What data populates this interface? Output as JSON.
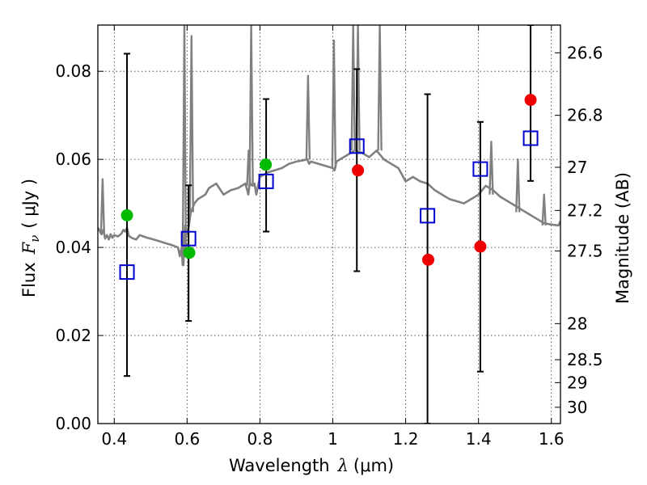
{
  "chart_data": {
    "type": "scatter",
    "xlabel": "Wavelength",
    "xlabel_symbol": "λ",
    "xlabel_unit": "(μm)",
    "ylabel": "Flux",
    "ylabel_symbol": "F",
    "ylabel_subscript": "ν",
    "ylabel_unit": "( μJy )",
    "y2label": "Magnitude (AB)",
    "xlim": [
      0.355,
      1.625
    ],
    "ylim": [
      0.0,
      0.0905
    ],
    "grid": true,
    "x_ticks": [
      {
        "value": 0.4,
        "label": "0.4"
      },
      {
        "value": 0.6,
        "label": "0.6"
      },
      {
        "value": 0.8,
        "label": "0.8"
      },
      {
        "value": 1.0,
        "label": "1"
      },
      {
        "value": 1.2,
        "label": "1.2"
      },
      {
        "value": 1.4,
        "label": "1.4"
      },
      {
        "value": 1.6,
        "label": "1.6"
      }
    ],
    "y_ticks": [
      {
        "value": 0.0,
        "label": "0.00"
      },
      {
        "value": 0.02,
        "label": "0.02"
      },
      {
        "value": 0.04,
        "label": "0.04"
      },
      {
        "value": 0.06,
        "label": "0.06"
      },
      {
        "value": 0.08,
        "label": "0.08"
      }
    ],
    "y2_ticks": [
      {
        "flux": 0.0842,
        "label": "26.6"
      },
      {
        "flux": 0.07,
        "label": "26.8"
      },
      {
        "flux": 0.0582,
        "label": "27"
      },
      {
        "flux": 0.0484,
        "label": "27.2"
      },
      {
        "flux": 0.0392,
        "label": "27.5"
      },
      {
        "flux": 0.0227,
        "label": "28"
      },
      {
        "flux": 0.0145,
        "label": "28.5"
      },
      {
        "flux": 0.0093,
        "label": "29"
      },
      {
        "flux": 0.0037,
        "label": "30"
      }
    ],
    "series": [
      {
        "name": "model spectrum",
        "kind": "line",
        "color": "#808080",
        "x": [
          0.355,
          0.365,
          0.37,
          0.375,
          0.38,
          0.385,
          0.39,
          0.395,
          0.4,
          0.41,
          0.42,
          0.425,
          0.43,
          0.435,
          0.44,
          0.45,
          0.46,
          0.47,
          0.48,
          0.49,
          0.5,
          0.52,
          0.54,
          0.56,
          0.575,
          0.58,
          0.585,
          0.588,
          0.59,
          0.595,
          0.6,
          0.605,
          0.61,
          0.62,
          0.63,
          0.64,
          0.65,
          0.66,
          0.67,
          0.68,
          0.7,
          0.72,
          0.74,
          0.76,
          0.765,
          0.768,
          0.772,
          0.78,
          0.785,
          0.79,
          0.8,
          0.82,
          0.84,
          0.86,
          0.88,
          0.9,
          0.92,
          0.93,
          0.935,
          0.94,
          0.96,
          0.98,
          1.0,
          1.005,
          1.01,
          1.02,
          1.04,
          1.06,
          1.08,
          1.1,
          1.12,
          1.14,
          1.16,
          1.18,
          1.2,
          1.22,
          1.24,
          1.26,
          1.28,
          1.3,
          1.32,
          1.34,
          1.36,
          1.38,
          1.4,
          1.42,
          1.44,
          1.46,
          1.48,
          1.5,
          1.52,
          1.54,
          1.56,
          1.58,
          1.6,
          1.62,
          1.625
        ],
        "y": [
          0.0445,
          0.043,
          0.044,
          0.042,
          0.0428,
          0.0418,
          0.043,
          0.0422,
          0.0428,
          0.0425,
          0.0432,
          0.044,
          0.0436,
          0.0445,
          0.0426,
          0.0421,
          0.0418,
          0.0428,
          0.0425,
          0.0422,
          0.042,
          0.0415,
          0.041,
          0.0405,
          0.04,
          0.038,
          0.04,
          0.036,
          0.036,
          0.045,
          0.043,
          0.045,
          0.048,
          0.05,
          0.051,
          0.0515,
          0.052,
          0.0535,
          0.054,
          0.0545,
          0.052,
          0.053,
          0.0535,
          0.0545,
          0.053,
          0.052,
          0.0545,
          0.054,
          0.0545,
          0.052,
          0.056,
          0.057,
          0.0575,
          0.058,
          0.059,
          0.0595,
          0.0598,
          0.06,
          0.059,
          0.0595,
          0.059,
          0.0585,
          0.058,
          0.0575,
          0.0595,
          0.06,
          0.061,
          0.062,
          0.0615,
          0.0605,
          0.062,
          0.06,
          0.059,
          0.058,
          0.055,
          0.056,
          0.055,
          0.0545,
          0.053,
          0.052,
          0.051,
          0.0505,
          0.05,
          0.051,
          0.052,
          0.054,
          0.053,
          0.0515,
          0.0505,
          0.0495,
          0.0485,
          0.0475,
          0.0465,
          0.0455,
          0.0452,
          0.045,
          0.046
        ],
        "spikes": [
          {
            "x": 0.368,
            "base": 0.043,
            "top": 0.0555
          },
          {
            "x": 0.5925,
            "base": 0.038,
            "top": 0.0905
          },
          {
            "x": 0.612,
            "base": 0.048,
            "top": 0.088
          },
          {
            "x": 0.769,
            "base": 0.054,
            "top": 0.062
          },
          {
            "x": 0.776,
            "base": 0.054,
            "top": 0.0905
          },
          {
            "x": 0.932,
            "base": 0.06,
            "top": 0.079
          },
          {
            "x": 1.003,
            "base": 0.058,
            "top": 0.087
          },
          {
            "x": 1.056,
            "base": 0.062,
            "top": 0.0905
          },
          {
            "x": 1.069,
            "base": 0.062,
            "top": 0.0905
          },
          {
            "x": 1.129,
            "base": 0.062,
            "top": 0.0905
          },
          {
            "x": 1.435,
            "base": 0.052,
            "top": 0.064
          },
          {
            "x": 1.508,
            "base": 0.048,
            "top": 0.06
          },
          {
            "x": 1.58,
            "base": 0.045,
            "top": 0.052
          }
        ]
      },
      {
        "name": "green points",
        "kind": "circle",
        "color": "#00bb00",
        "points": [
          {
            "x": 0.435,
            "y": 0.0473
          },
          {
            "x": 0.606,
            "y": 0.0388
          },
          {
            "x": 0.816,
            "y": 0.0588
          }
        ]
      },
      {
        "name": "red points",
        "kind": "circle",
        "color": "#ee0000",
        "points": [
          {
            "x": 1.069,
            "y": 0.0575
          },
          {
            "x": 1.262,
            "y": 0.0372
          },
          {
            "x": 1.405,
            "y": 0.0402
          },
          {
            "x": 1.543,
            "y": 0.0735
          }
        ]
      },
      {
        "name": "blue squares with error bars",
        "kind": "square",
        "color": "#0000cc",
        "points": [
          {
            "x": 0.435,
            "y": 0.0344,
            "lo": 0.0108,
            "hi": 0.084
          },
          {
            "x": 0.604,
            "y": 0.042,
            "lo": 0.0233,
            "hi": 0.0541
          },
          {
            "x": 0.817,
            "y": 0.055,
            "lo": 0.0436,
            "hi": 0.0737
          },
          {
            "x": 1.066,
            "y": 0.063,
            "lo": 0.0346,
            "hi": 0.0805
          },
          {
            "x": 1.26,
            "y": 0.0472,
            "lo": 0.0,
            "hi": 0.0748
          },
          {
            "x": 1.405,
            "y": 0.0578,
            "lo": 0.0118,
            "hi": 0.0685
          },
          {
            "x": 1.543,
            "y": 0.0648,
            "lo": 0.0551,
            "hi": 0.0905
          }
        ]
      }
    ]
  }
}
